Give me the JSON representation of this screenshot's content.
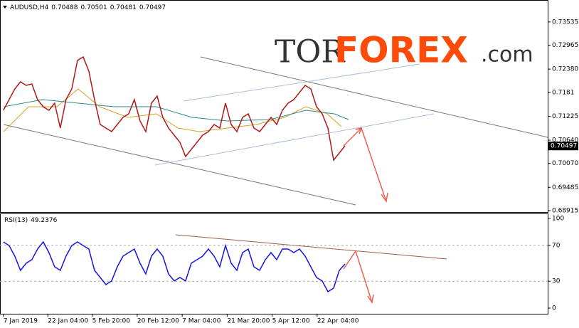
{
  "watermark": {
    "tor": "TOR",
    "forex": "FOREX",
    "com": ".com"
  },
  "chart_data": [
    {
      "type": "line",
      "symbol": "AUDUSD,H4",
      "ohlc": [
        0.70488,
        0.70501,
        0.70481,
        0.70497
      ],
      "color": "#b01818",
      "x": [
        0,
        1,
        2,
        3,
        4,
        5,
        6,
        7,
        8,
        9,
        10,
        11,
        12,
        13,
        14,
        15,
        16,
        17,
        18,
        19,
        20,
        21,
        22,
        23,
        24,
        25,
        26,
        27,
        28,
        29,
        30,
        31,
        32,
        33,
        34,
        35,
        36,
        37,
        38,
        39,
        40,
        41,
        42,
        43,
        44,
        45,
        46,
        47,
        48,
        49,
        50,
        51,
        52,
        53,
        54,
        55,
        56,
        57,
        58,
        59,
        60
      ],
      "values": [
        0.71372,
        0.71633,
        0.71894,
        0.72069,
        0.71981,
        0.72016,
        0.71633,
        0.71459,
        0.71372,
        0.71546,
        0.70936,
        0.71633,
        0.71894,
        0.72591,
        0.72678,
        0.7233,
        0.71633,
        0.71023,
        0.70936,
        0.70849,
        0.71023,
        0.71197,
        0.71284,
        0.71633,
        0.7111,
        0.70849,
        0.71546,
        0.7172,
        0.71197,
        0.70936,
        0.70762,
        0.70587,
        0.70239,
        0.70413,
        0.70587,
        0.70762,
        0.70849,
        0.71023,
        0.70936,
        0.71546,
        0.71023,
        0.70849,
        0.71197,
        0.71284,
        0.70936,
        0.70849,
        0.71023,
        0.71197,
        0.71023,
        0.71372,
        0.71546,
        0.71633,
        0.71807,
        0.71981,
        0.71894,
        0.71459,
        0.71284,
        0.70936,
        0.70152,
        0.70326,
        0.705
      ],
      "xlim": [
        -0.6,
        95.6
      ],
      "xticks": [
        {
          "value": 0,
          "label": "7 Jan 2019"
        },
        {
          "value": 7.8,
          "label": "22 Jan 04:00"
        },
        {
          "value": 15.6,
          "label": "5 Feb 20:00"
        },
        {
          "value": 23.5,
          "label": "20 Feb 12:00"
        },
        {
          "value": 31.4,
          "label": "7 Mar 04:00"
        },
        {
          "value": 39.3,
          "label": "21 Mar 20:00"
        },
        {
          "value": 47.2,
          "label": "5 Apr 12:00"
        },
        {
          "value": 55.1,
          "label": "22 Apr 04:00"
        }
      ],
      "ylim": [
        0.6888,
        0.7402
      ],
      "yticks": [
        0.73535,
        0.72965,
        {
          "value": 0.7238,
          "label": "0.72380"
        },
        0.7181,
        0.71225,
        {
          "value": 0.7064,
          "label": "0.70640"
        },
        {
          "value": 0.7007,
          "label": "0.70070"
        },
        0.69485,
        0.68915
      ],
      "last_price": 0.70497
    },
    {
      "type": "line",
      "title": "RSI(13)",
      "last_value": 49.2376,
      "color": "#1515e0",
      "x": [
        0,
        1,
        2,
        3,
        4,
        5,
        6,
        7,
        8,
        9,
        10,
        11,
        12,
        13,
        14,
        15,
        16,
        17,
        18,
        19,
        20,
        21,
        22,
        23,
        24,
        25,
        26,
        27,
        28,
        29,
        30,
        31,
        32,
        33,
        34,
        35,
        36,
        37,
        38,
        39,
        40,
        41,
        42,
        43,
        44,
        45,
        46,
        47,
        48,
        49,
        50,
        51,
        52,
        53,
        54,
        55,
        56,
        57,
        58,
        59,
        60
      ],
      "values": [
        73.8,
        69.8,
        57.9,
        42.1,
        50,
        54,
        65.9,
        73.8,
        61.9,
        46,
        42.1,
        57.9,
        69.8,
        73.8,
        69.8,
        65.9,
        42.1,
        34.1,
        26.2,
        30.2,
        46,
        57.9,
        61.9,
        65.9,
        50,
        38.1,
        57.9,
        65.9,
        57.9,
        38.1,
        30.2,
        34.1,
        30.2,
        50,
        54,
        57.9,
        65.9,
        57.9,
        46,
        69.8,
        50,
        42.1,
        61.9,
        65.9,
        46,
        42.1,
        54,
        61.9,
        54,
        65.9,
        65.9,
        61.9,
        65.9,
        57.9,
        46,
        34.1,
        30.2,
        18.3,
        22.2,
        42.1,
        49.2
      ],
      "ylim": [
        0,
        100
      ],
      "yticks": [
        0,
        30,
        70,
        100
      ],
      "levels": [
        30,
        70
      ]
    }
  ]
}
